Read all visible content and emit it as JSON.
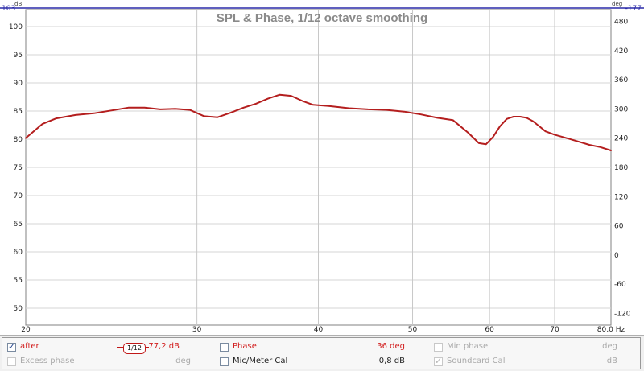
{
  "chart_data": {
    "type": "line",
    "title": "SPL & Phase, 1/12 octave smoothing",
    "x_unit": "Hz",
    "x_scale": "log",
    "xlim": [
      20,
      80
    ],
    "x_ticks": [
      20,
      30,
      40,
      50,
      60,
      70,
      80
    ],
    "x_tick_labels": [
      "20",
      "30",
      "40",
      "50",
      "60",
      "70",
      "80,0 Hz"
    ],
    "y_left": {
      "unit": "dB",
      "ylim": [
        47,
        103
      ],
      "ticks": [
        100,
        95,
        90,
        85,
        80,
        75,
        70,
        65,
        60,
        55,
        50
      ],
      "top_label": "103"
    },
    "y_right": {
      "unit": "deg",
      "ylim": [
        -144,
        504
      ],
      "ticks": [
        480,
        420,
        360,
        300,
        240,
        180,
        120,
        60,
        0,
        -60,
        -120
      ],
      "top_label": "-177"
    },
    "grid": true,
    "series": [
      {
        "name": "after",
        "color": "#b41e1e",
        "x": [
          20.0,
          20.8,
          21.5,
          22.5,
          23.5,
          24.5,
          25.5,
          26.5,
          27.5,
          28.5,
          29.5,
          30.5,
          31.5,
          32.5,
          33.5,
          34.5,
          35.5,
          36.5,
          37.5,
          38.5,
          39.5,
          41.0,
          43.0,
          45.0,
          47.0,
          49.0,
          51.0,
          53.0,
          55.0,
          57.0,
          58.5,
          59.5,
          60.5,
          61.5,
          62.5,
          63.5,
          64.5,
          65.5,
          66.5,
          67.5,
          68.5,
          70.0,
          72.0,
          74.0,
          76.0,
          78.0,
          80.0
        ],
        "y": [
          80.2,
          82.7,
          83.7,
          84.3,
          84.6,
          85.1,
          85.6,
          85.6,
          85.3,
          85.4,
          85.2,
          84.1,
          83.9,
          84.7,
          85.6,
          86.3,
          87.2,
          87.9,
          87.7,
          86.8,
          86.1,
          85.9,
          85.5,
          85.3,
          85.2,
          84.9,
          84.4,
          83.8,
          83.4,
          81.2,
          79.3,
          79.1,
          80.4,
          82.3,
          83.6,
          84.0,
          84.0,
          83.8,
          83.2,
          82.3,
          81.4,
          80.8,
          80.2,
          79.6,
          79.0,
          78.6,
          78.0
        ]
      }
    ]
  },
  "legend": {
    "row1": {
      "after_label": "after",
      "smoothing_label": "1/12",
      "after_value": "77,2 dB",
      "phase_label": "Phase",
      "phase_value": "36 deg",
      "minphase_label": "Min phase",
      "minphase_unit": "deg"
    },
    "row2": {
      "excess_label": "Excess phase",
      "excess_unit": "deg",
      "micmeter_label": "Mic/Meter Cal",
      "micmeter_value": "0,8 dB",
      "soundcard_label": "Soundcard Cal",
      "soundcard_unit": "dB"
    }
  }
}
